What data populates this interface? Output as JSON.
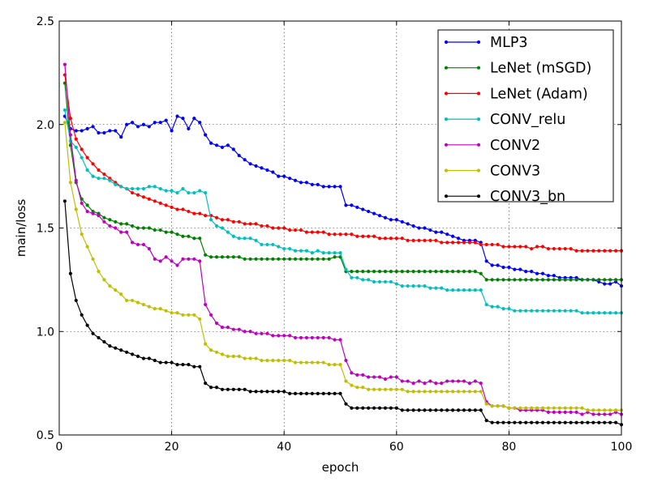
{
  "chart_data": {
    "type": "line",
    "title": "",
    "xlabel": "epoch",
    "ylabel": "main/loss",
    "xlim": [
      0,
      100
    ],
    "ylim": [
      0.5,
      2.5
    ],
    "x_ticks": [
      "0",
      "20",
      "40",
      "60",
      "80",
      "100"
    ],
    "y_ticks": [
      "0.5",
      "1.0",
      "1.5",
      "2.0",
      "2.5"
    ],
    "grid": true,
    "legend_position": "top-right",
    "series": [
      {
        "name": "MLP3",
        "color": "#0000ff",
        "values": [
          2.04,
          1.98,
          1.97,
          1.97,
          1.98,
          1.99,
          1.96,
          1.96,
          1.97,
          1.97,
          1.94,
          2.0,
          2.01,
          1.99,
          2.0,
          1.99,
          2.01,
          2.01,
          2.02,
          1.97,
          2.04,
          2.03,
          1.98,
          2.03,
          2.01,
          1.95,
          1.91,
          1.9,
          1.89,
          1.9,
          1.88,
          1.85,
          1.83,
          1.81,
          1.8,
          1.79,
          1.78,
          1.77,
          1.75,
          1.75,
          1.74,
          1.73,
          1.72,
          1.72,
          1.71,
          1.71,
          1.7,
          1.7,
          1.7,
          1.7,
          1.61,
          1.61,
          1.6,
          1.59,
          1.58,
          1.57,
          1.56,
          1.55,
          1.54,
          1.54,
          1.53,
          1.52,
          1.51,
          1.5,
          1.5,
          1.49,
          1.48,
          1.48,
          1.47,
          1.46,
          1.45,
          1.44,
          1.44,
          1.44,
          1.43,
          1.34,
          1.32,
          1.32,
          1.31,
          1.31,
          1.3,
          1.3,
          1.29,
          1.29,
          1.28,
          1.28,
          1.27,
          1.27,
          1.26,
          1.26,
          1.26,
          1.26,
          1.25,
          1.25,
          1.25,
          1.24,
          1.23,
          1.23,
          1.24,
          1.22
        ]
      },
      {
        "name": "LeNet (mSGD)",
        "color": "#008000",
        "values": [
          2.2,
          1.9,
          1.72,
          1.64,
          1.61,
          1.58,
          1.57,
          1.55,
          1.54,
          1.53,
          1.52,
          1.52,
          1.51,
          1.5,
          1.5,
          1.5,
          1.49,
          1.49,
          1.48,
          1.48,
          1.47,
          1.46,
          1.46,
          1.45,
          1.45,
          1.37,
          1.36,
          1.36,
          1.36,
          1.36,
          1.36,
          1.36,
          1.35,
          1.35,
          1.35,
          1.35,
          1.35,
          1.35,
          1.35,
          1.35,
          1.35,
          1.35,
          1.35,
          1.35,
          1.35,
          1.35,
          1.35,
          1.35,
          1.36,
          1.36,
          1.29,
          1.29,
          1.29,
          1.29,
          1.29,
          1.29,
          1.29,
          1.29,
          1.29,
          1.29,
          1.29,
          1.29,
          1.29,
          1.29,
          1.29,
          1.29,
          1.29,
          1.29,
          1.29,
          1.29,
          1.29,
          1.29,
          1.29,
          1.29,
          1.28,
          1.25,
          1.25,
          1.25,
          1.25,
          1.25,
          1.25,
          1.25,
          1.25,
          1.25,
          1.25,
          1.25,
          1.25,
          1.25,
          1.25,
          1.25,
          1.25,
          1.25,
          1.25,
          1.25,
          1.25,
          1.25,
          1.25,
          1.25,
          1.25,
          1.25
        ]
      },
      {
        "name": "LeNet (Adam)",
        "color": "#ff0000",
        "values": [
          2.24,
          2.03,
          1.93,
          1.88,
          1.84,
          1.81,
          1.78,
          1.76,
          1.74,
          1.72,
          1.7,
          1.69,
          1.67,
          1.66,
          1.65,
          1.64,
          1.63,
          1.62,
          1.61,
          1.6,
          1.59,
          1.59,
          1.58,
          1.57,
          1.57,
          1.56,
          1.56,
          1.55,
          1.54,
          1.54,
          1.53,
          1.53,
          1.52,
          1.52,
          1.52,
          1.51,
          1.51,
          1.5,
          1.5,
          1.5,
          1.49,
          1.49,
          1.49,
          1.48,
          1.48,
          1.48,
          1.48,
          1.47,
          1.47,
          1.47,
          1.47,
          1.47,
          1.46,
          1.46,
          1.46,
          1.46,
          1.45,
          1.45,
          1.45,
          1.45,
          1.45,
          1.44,
          1.44,
          1.44,
          1.44,
          1.44,
          1.44,
          1.43,
          1.43,
          1.43,
          1.43,
          1.43,
          1.43,
          1.43,
          1.42,
          1.42,
          1.42,
          1.42,
          1.41,
          1.41,
          1.41,
          1.41,
          1.41,
          1.4,
          1.41,
          1.41,
          1.4,
          1.4,
          1.4,
          1.4,
          1.4,
          1.39,
          1.39,
          1.39,
          1.39,
          1.39,
          1.39,
          1.39,
          1.39,
          1.39
        ]
      },
      {
        "name": "CONV_relu",
        "color": "#00bfbf",
        "values": [
          2.07,
          1.92,
          1.89,
          1.84,
          1.78,
          1.75,
          1.74,
          1.74,
          1.73,
          1.71,
          1.7,
          1.69,
          1.69,
          1.69,
          1.69,
          1.7,
          1.7,
          1.69,
          1.68,
          1.68,
          1.67,
          1.69,
          1.67,
          1.67,
          1.68,
          1.67,
          1.54,
          1.51,
          1.5,
          1.48,
          1.46,
          1.45,
          1.45,
          1.45,
          1.44,
          1.42,
          1.42,
          1.42,
          1.41,
          1.4,
          1.4,
          1.39,
          1.39,
          1.39,
          1.38,
          1.39,
          1.38,
          1.38,
          1.38,
          1.38,
          1.3,
          1.26,
          1.26,
          1.25,
          1.25,
          1.24,
          1.24,
          1.24,
          1.24,
          1.23,
          1.22,
          1.22,
          1.22,
          1.22,
          1.22,
          1.21,
          1.21,
          1.21,
          1.2,
          1.2,
          1.2,
          1.2,
          1.2,
          1.2,
          1.2,
          1.13,
          1.12,
          1.12,
          1.11,
          1.11,
          1.1,
          1.1,
          1.1,
          1.1,
          1.1,
          1.1,
          1.1,
          1.1,
          1.1,
          1.1,
          1.1,
          1.1,
          1.09,
          1.09,
          1.09,
          1.09,
          1.09,
          1.09,
          1.09,
          1.09
        ]
      },
      {
        "name": "CONV2",
        "color": "#bf00bf",
        "values": [
          2.29,
          1.95,
          1.73,
          1.62,
          1.58,
          1.57,
          1.56,
          1.53,
          1.51,
          1.5,
          1.48,
          1.48,
          1.43,
          1.42,
          1.42,
          1.4,
          1.35,
          1.34,
          1.36,
          1.34,
          1.32,
          1.35,
          1.35,
          1.35,
          1.34,
          1.13,
          1.08,
          1.04,
          1.02,
          1.02,
          1.01,
          1.01,
          1.0,
          1.0,
          0.99,
          0.99,
          0.99,
          0.98,
          0.98,
          0.98,
          0.98,
          0.97,
          0.97,
          0.97,
          0.97,
          0.97,
          0.97,
          0.97,
          0.96,
          0.96,
          0.86,
          0.8,
          0.79,
          0.79,
          0.78,
          0.78,
          0.78,
          0.77,
          0.78,
          0.78,
          0.76,
          0.76,
          0.75,
          0.76,
          0.75,
          0.76,
          0.75,
          0.75,
          0.76,
          0.76,
          0.76,
          0.76,
          0.75,
          0.76,
          0.75,
          0.66,
          0.64,
          0.64,
          0.64,
          0.63,
          0.63,
          0.62,
          0.62,
          0.62,
          0.62,
          0.62,
          0.61,
          0.61,
          0.61,
          0.61,
          0.61,
          0.61,
          0.6,
          0.61,
          0.6,
          0.6,
          0.6,
          0.6,
          0.61,
          0.6
        ]
      },
      {
        "name": "CONV3",
        "color": "#bfbf00",
        "values": [
          2.01,
          1.72,
          1.59,
          1.47,
          1.41,
          1.35,
          1.29,
          1.25,
          1.22,
          1.2,
          1.18,
          1.15,
          1.15,
          1.14,
          1.13,
          1.12,
          1.11,
          1.11,
          1.1,
          1.09,
          1.09,
          1.08,
          1.08,
          1.08,
          1.06,
          0.94,
          0.91,
          0.9,
          0.89,
          0.88,
          0.88,
          0.88,
          0.87,
          0.87,
          0.87,
          0.86,
          0.86,
          0.86,
          0.86,
          0.86,
          0.86,
          0.85,
          0.85,
          0.85,
          0.85,
          0.85,
          0.85,
          0.84,
          0.84,
          0.84,
          0.76,
          0.74,
          0.73,
          0.73,
          0.72,
          0.72,
          0.72,
          0.72,
          0.72,
          0.72,
          0.72,
          0.71,
          0.71,
          0.71,
          0.71,
          0.71,
          0.71,
          0.71,
          0.71,
          0.71,
          0.71,
          0.71,
          0.71,
          0.71,
          0.71,
          0.65,
          0.64,
          0.64,
          0.64,
          0.63,
          0.63,
          0.63,
          0.63,
          0.63,
          0.63,
          0.63,
          0.63,
          0.63,
          0.63,
          0.63,
          0.63,
          0.63,
          0.63,
          0.62,
          0.62,
          0.62,
          0.62,
          0.62,
          0.62,
          0.62
        ]
      },
      {
        "name": "CONV3_bn",
        "color": "#000000",
        "values": [
          1.63,
          1.28,
          1.15,
          1.08,
          1.03,
          0.99,
          0.97,
          0.95,
          0.93,
          0.92,
          0.91,
          0.9,
          0.89,
          0.88,
          0.87,
          0.87,
          0.86,
          0.85,
          0.85,
          0.85,
          0.84,
          0.84,
          0.84,
          0.83,
          0.83,
          0.75,
          0.73,
          0.73,
          0.72,
          0.72,
          0.72,
          0.72,
          0.72,
          0.71,
          0.71,
          0.71,
          0.71,
          0.71,
          0.71,
          0.71,
          0.7,
          0.7,
          0.7,
          0.7,
          0.7,
          0.7,
          0.7,
          0.7,
          0.7,
          0.7,
          0.65,
          0.63,
          0.63,
          0.63,
          0.63,
          0.63,
          0.63,
          0.63,
          0.63,
          0.63,
          0.62,
          0.62,
          0.62,
          0.62,
          0.62,
          0.62,
          0.62,
          0.62,
          0.62,
          0.62,
          0.62,
          0.62,
          0.62,
          0.62,
          0.62,
          0.57,
          0.56,
          0.56,
          0.56,
          0.56,
          0.56,
          0.56,
          0.56,
          0.56,
          0.56,
          0.56,
          0.56,
          0.56,
          0.56,
          0.56,
          0.56,
          0.56,
          0.56,
          0.56,
          0.56,
          0.56,
          0.56,
          0.56,
          0.56,
          0.55
        ]
      }
    ]
  }
}
